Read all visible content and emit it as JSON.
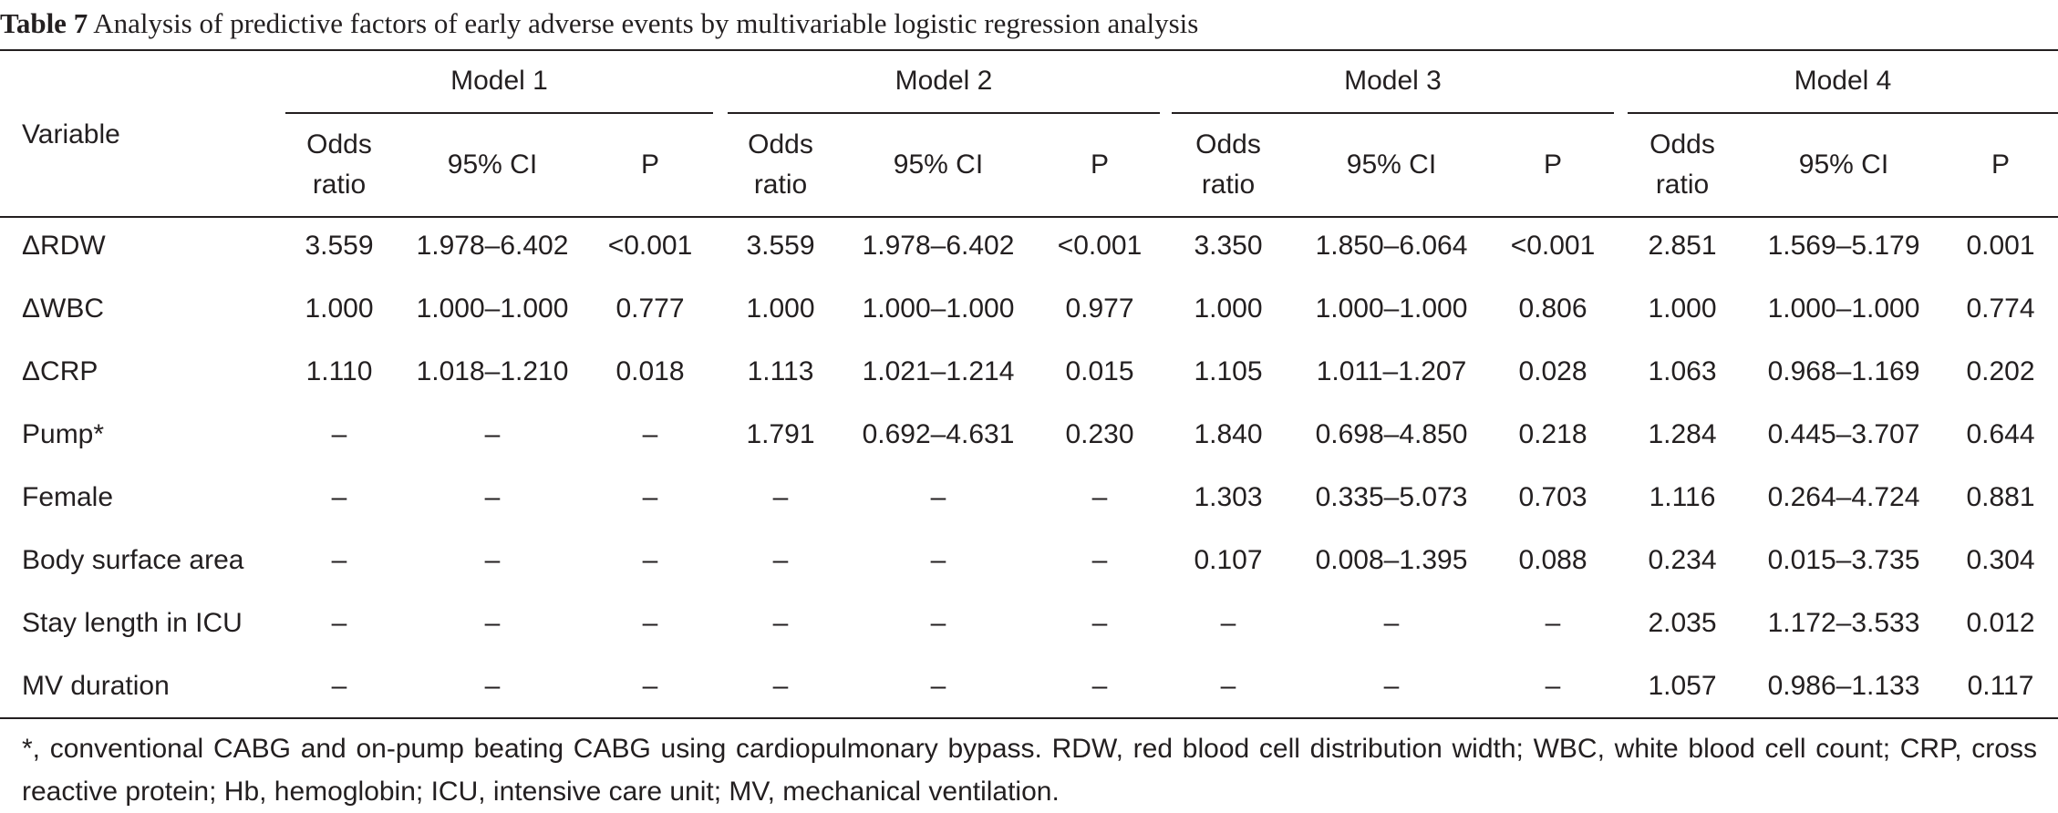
{
  "caption": {
    "label": "Table 7",
    "text": " Analysis of predictive factors of early adverse events by multivariable logistic regression analysis"
  },
  "header": {
    "variable": "Variable",
    "models": [
      "Model 1",
      "Model 2",
      "Model 3",
      "Model 4"
    ],
    "odds_line1": "Odds",
    "odds_line2": "ratio",
    "ci": "95% CI",
    "p": "P"
  },
  "rows": [
    {
      "variable": "ΔRDW",
      "values": [
        "3.559",
        "1.978–6.402",
        "<0.001",
        "3.559",
        "1.978–6.402",
        "<0.001",
        "3.350",
        "1.850–6.064",
        "<0.001",
        "2.851",
        "1.569–5.179",
        "0.001"
      ]
    },
    {
      "variable": "ΔWBC",
      "values": [
        "1.000",
        "1.000–1.000",
        "0.777",
        "1.000",
        "1.000–1.000",
        "0.977",
        "1.000",
        "1.000–1.000",
        "0.806",
        "1.000",
        "1.000–1.000",
        "0.774"
      ]
    },
    {
      "variable": "ΔCRP",
      "values": [
        "1.110",
        "1.018–1.210",
        "0.018",
        "1.113",
        "1.021–1.214",
        "0.015",
        "1.105",
        "1.011–1.207",
        "0.028",
        "1.063",
        "0.968–1.169",
        "0.202"
      ]
    },
    {
      "variable": "Pump*",
      "values": [
        "–",
        "–",
        "–",
        "1.791",
        "0.692–4.631",
        "0.230",
        "1.840",
        "0.698–4.850",
        "0.218",
        "1.284",
        "0.445–3.707",
        "0.644"
      ]
    },
    {
      "variable": "Female",
      "values": [
        "–",
        "–",
        "–",
        "–",
        "–",
        "–",
        "1.303",
        "0.335–5.073",
        "0.703",
        "1.116",
        "0.264–4.724",
        "0.881"
      ]
    },
    {
      "variable": "Body surface area",
      "values": [
        "–",
        "–",
        "–",
        "–",
        "–",
        "–",
        "0.107",
        "0.008–1.395",
        "0.088",
        "0.234",
        "0.015–3.735",
        "0.304"
      ]
    },
    {
      "variable": "Stay length in ICU",
      "values": [
        "–",
        "–",
        "–",
        "–",
        "–",
        "–",
        "–",
        "–",
        "–",
        "2.035",
        "1.172–3.533",
        "0.012"
      ]
    },
    {
      "variable": "MV duration",
      "values": [
        "–",
        "–",
        "–",
        "–",
        "–",
        "–",
        "–",
        "–",
        "–",
        "1.057",
        "0.986–1.133",
        "0.117"
      ]
    }
  ],
  "footnote": "*, conventional CABG and on-pump beating CABG using cardiopulmonary bypass. RDW, red blood cell distribution width; WBC, white blood cell count; CRP, cross reactive protein; Hb, hemoglobin; ICU, intensive care unit; MV, mechanical ventilation."
}
